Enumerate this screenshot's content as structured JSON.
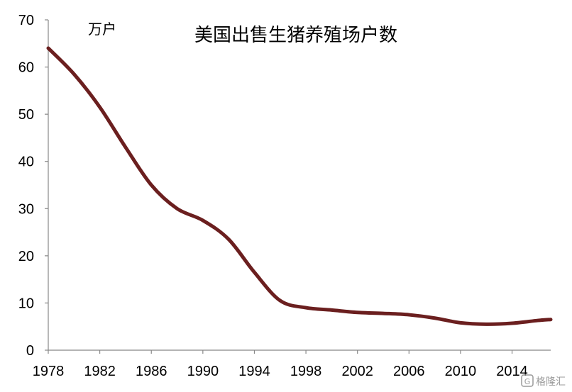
{
  "chart_data": {
    "type": "line",
    "title": "美国出售生猪养殖场户数",
    "unit": "万户",
    "xlabel": "",
    "ylabel": "",
    "xlim": [
      1978,
      2017
    ],
    "ylim": [
      0,
      70
    ],
    "y_ticks": [
      "0",
      "10",
      "20",
      "30",
      "40",
      "50",
      "60",
      "70"
    ],
    "x_ticks": [
      "1978",
      "1982",
      "1986",
      "1990",
      "1994",
      "1998",
      "2002",
      "2006",
      "2010",
      "2014"
    ],
    "grid": false,
    "series": [
      {
        "color": "#6b1f1f",
        "x": [
          1978,
          1980,
          1982,
          1984,
          1986,
          1988,
          1990,
          1992,
          1994,
          1996,
          1998,
          2000,
          2002,
          2004,
          2006,
          2008,
          2010,
          2012,
          2014,
          2016,
          2017
        ],
        "y": [
          64,
          58.5,
          51.5,
          43,
          35,
          30,
          27.5,
          23.5,
          16.5,
          10.5,
          9,
          8.5,
          8,
          7.8,
          7.5,
          6.8,
          5.8,
          5.5,
          5.7,
          6.3,
          6.5
        ]
      }
    ]
  },
  "watermark": {
    "icon": "logo-icon",
    "text": "格隆汇"
  }
}
